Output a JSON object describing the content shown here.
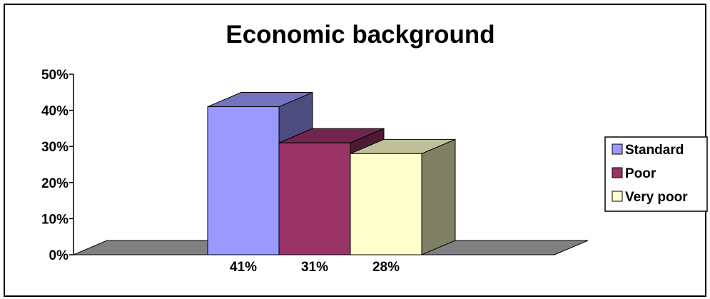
{
  "chart_data": {
    "type": "bar",
    "title": "Economic background",
    "xlabel": "",
    "ylabel": "",
    "ylim": [
      0,
      50
    ],
    "y_ticks": [
      "0%",
      "10%",
      "20%",
      "30%",
      "40%",
      "50%"
    ],
    "grid": false,
    "legend_position": "right",
    "series": [
      {
        "name": "Standard",
        "value": 41,
        "label": "41%",
        "color": "#9999FF",
        "side_color": "#4D4D80",
        "top_color": "#7373BF"
      },
      {
        "name": "Poor",
        "value": 31,
        "label": "31%",
        "color": "#993366",
        "side_color": "#4D1A33",
        "top_color": "#73264D"
      },
      {
        "name": "Very poor",
        "value": 28,
        "label": "28%",
        "color": "#FFFFCC",
        "side_color": "#808066",
        "top_color": "#BFBF99"
      }
    ],
    "floor_color": "#808080"
  }
}
